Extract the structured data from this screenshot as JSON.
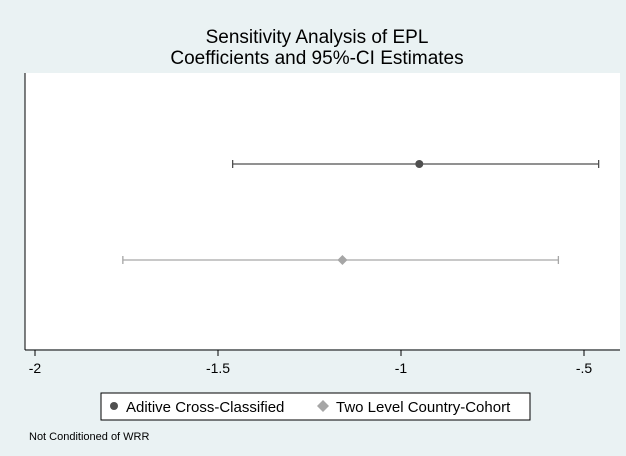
{
  "chart_data": {
    "type": "scatter",
    "title_lines": [
      "Sensitivity Analysis of EPL",
      "Coefficients and 95%-CI Estimates"
    ],
    "xlabel": "",
    "ylabel": "",
    "xlim": [
      -2.05,
      -0.45
    ],
    "x_ticks": [
      -2,
      -1.5,
      -1,
      -0.5
    ],
    "x_tick_labels": [
      "-2",
      "-1.5",
      "-1",
      "-.5"
    ],
    "grid": false,
    "legend_position": "bottom",
    "series": [
      {
        "name": "Aditive Cross-Classified",
        "marker": "circle",
        "color": "#4f4f4f",
        "estimate": -0.95,
        "ci_low": -1.46,
        "ci_high": -0.46
      },
      {
        "name": "Two Level Country-Cohort",
        "marker": "diamond",
        "color": "#a6a6a6",
        "estimate": -1.16,
        "ci_low": -1.76,
        "ci_high": -0.57
      }
    ],
    "note": "Not Conditioned of WRR"
  },
  "colors": {
    "background": "#eaf2f3",
    "plot_area": "#ffffff",
    "axis": "#000000"
  }
}
